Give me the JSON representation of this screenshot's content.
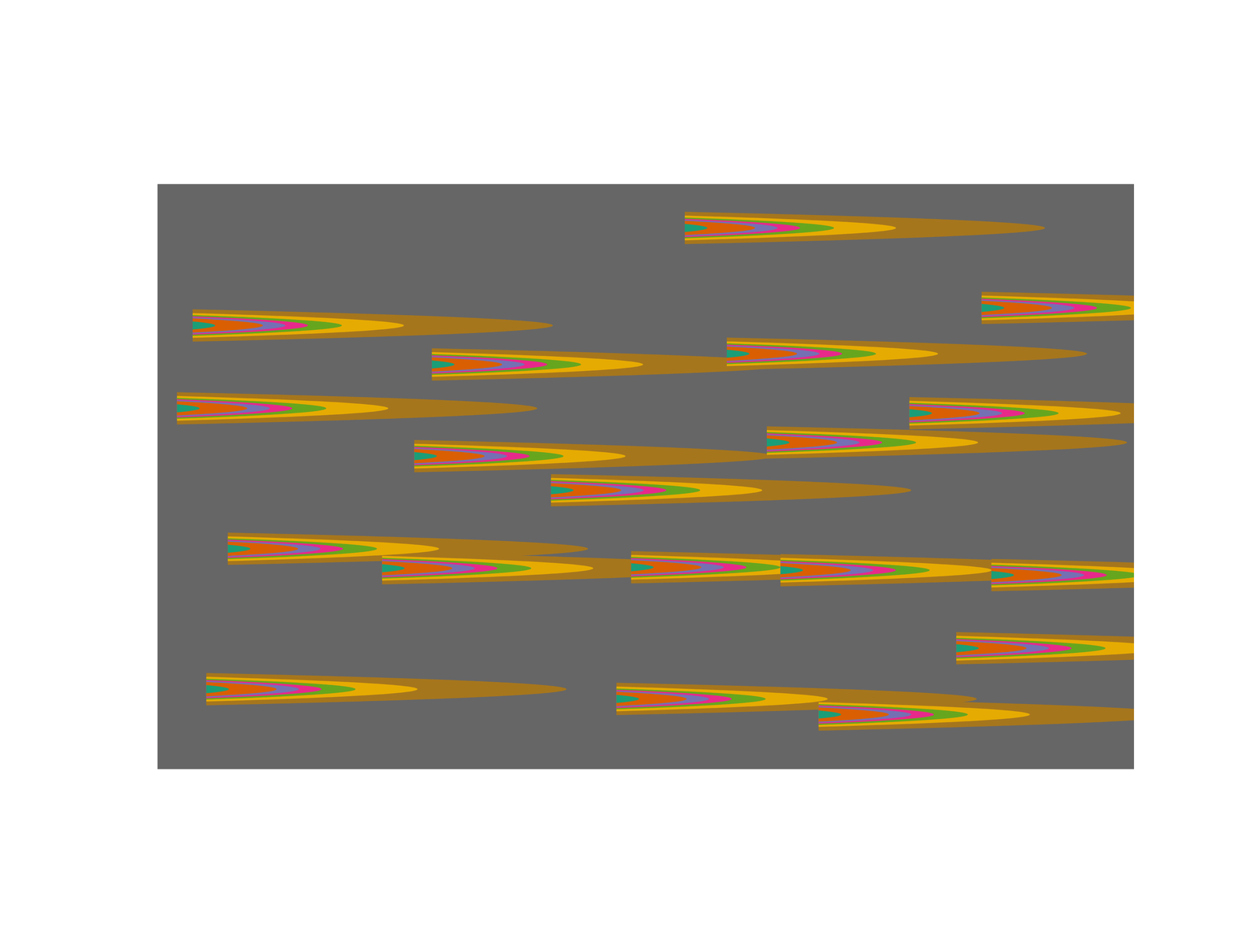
{
  "chart_data": {
    "type": "contour",
    "xlim": [
      0,
      100
    ],
    "ylim": [
      0,
      60
    ],
    "tick_labels": false,
    "strength": 100,
    "decay_length": 10,
    "spread": 0.61,
    "levels": [
      2.5,
      11.5,
      21.7,
      30.7,
      38.7,
      48.7,
      79.4
    ],
    "colors": [
      "#666666",
      "#a6761d",
      "#e6ab02",
      "#66a61e",
      "#e7298a",
      "#7570b3",
      "#d95f02",
      "#1b9e77"
    ],
    "sources": [
      {
        "x": 54.0,
        "y": 55.5
      },
      {
        "x": 84.4,
        "y": 47.3
      },
      {
        "x": 3.6,
        "y": 45.5
      },
      {
        "x": 28.1,
        "y": 41.5
      },
      {
        "x": 58.3,
        "y": 42.6
      },
      {
        "x": 2.0,
        "y": 37.0
      },
      {
        "x": 77.0,
        "y": 36.5
      },
      {
        "x": 62.4,
        "y": 33.5
      },
      {
        "x": 26.3,
        "y": 32.1
      },
      {
        "x": 40.3,
        "y": 28.6
      },
      {
        "x": 7.2,
        "y": 22.6
      },
      {
        "x": 23.0,
        "y": 20.6
      },
      {
        "x": 48.5,
        "y": 20.7
      },
      {
        "x": 63.8,
        "y": 20.4
      },
      {
        "x": 85.4,
        "y": 19.9
      },
      {
        "x": 81.8,
        "y": 12.4
      },
      {
        "x": 5.0,
        "y": 8.2
      },
      {
        "x": 47.0,
        "y": 7.2
      },
      {
        "x": 67.7,
        "y": 5.6
      }
    ]
  }
}
